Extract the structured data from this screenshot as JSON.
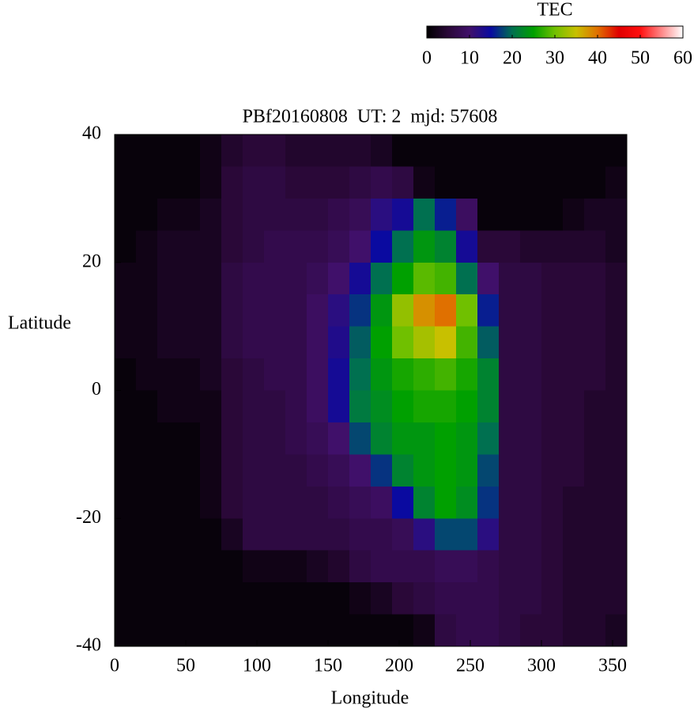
{
  "chart_data": {
    "type": "heatmap",
    "title": "PBf20160808  UT: 2  mjd: 57608",
    "xlabel": "Longitude",
    "ylabel": "Latitude",
    "colorbar_label": "TEC",
    "x": [
      7.5,
      22.5,
      37.5,
      52.5,
      67.5,
      82.5,
      97.5,
      112.5,
      127.5,
      142.5,
      157.5,
      172.5,
      187.5,
      202.5,
      217.5,
      232.5,
      247.5,
      262.5,
      277.5,
      292.5,
      307.5,
      322.5,
      337.5,
      352.5
    ],
    "y": [
      37.5,
      32.5,
      27.5,
      22.5,
      17.5,
      12.5,
      7.5,
      2.5,
      -2.5,
      -7.5,
      -12.5,
      -17.5,
      -22.5,
      -27.5,
      -32.5,
      -37.5
    ],
    "z": [
      [
        1,
        1,
        1,
        1,
        2,
        4,
        5,
        5,
        4,
        4,
        4,
        4,
        3,
        1,
        1,
        1,
        1,
        1,
        1,
        1,
        1,
        1,
        1,
        1
      ],
      [
        1,
        1,
        1,
        1,
        2,
        5,
        6,
        6,
        5,
        5,
        5,
        6,
        7,
        6,
        2,
        1,
        1,
        1,
        1,
        1,
        1,
        1,
        1,
        2
      ],
      [
        1,
        1,
        2,
        2,
        3,
        5,
        6,
        6,
        6,
        6,
        7,
        8,
        12,
        14,
        20,
        16,
        9,
        1,
        1,
        1,
        1,
        2,
        3,
        3
      ],
      [
        1,
        2,
        3,
        3,
        3,
        5,
        6,
        7,
        7,
        7,
        8,
        10,
        15,
        20,
        24,
        22,
        14,
        5,
        5,
        4,
        4,
        4,
        4,
        3
      ],
      [
        2,
        2,
        3,
        3,
        3,
        6,
        7,
        7,
        7,
        8,
        10,
        14,
        20,
        25,
        29,
        28,
        20,
        10,
        6,
        6,
        5,
        5,
        5,
        4
      ],
      [
        2,
        2,
        3,
        3,
        3,
        6,
        7,
        7,
        7,
        9,
        12,
        17,
        24,
        32,
        38,
        40,
        30,
        16,
        6,
        6,
        5,
        5,
        5,
        4
      ],
      [
        2,
        2,
        3,
        3,
        3,
        6,
        7,
        7,
        7,
        9,
        13,
        19,
        25,
        30,
        33,
        35,
        28,
        19,
        6,
        6,
        5,
        5,
        5,
        4
      ],
      [
        1,
        2,
        2,
        2,
        3,
        5,
        6,
        7,
        7,
        9,
        14,
        20,
        24,
        26,
        27,
        28,
        26,
        22,
        6,
        6,
        5,
        5,
        5,
        4
      ],
      [
        1,
        1,
        2,
        2,
        2,
        5,
        6,
        6,
        7,
        9,
        14,
        21,
        23,
        25,
        26,
        26,
        25,
        22,
        6,
        6,
        5,
        5,
        4,
        4
      ],
      [
        1,
        1,
        1,
        1,
        2,
        5,
        6,
        6,
        7,
        8,
        10,
        18,
        22,
        24,
        24,
        25,
        24,
        20,
        6,
        6,
        5,
        5,
        4,
        4
      ],
      [
        1,
        1,
        1,
        1,
        2,
        5,
        6,
        6,
        6,
        7,
        8,
        10,
        17,
        22,
        24,
        25,
        24,
        18,
        6,
        6,
        5,
        5,
        4,
        4
      ],
      [
        1,
        1,
        1,
        1,
        2,
        5,
        6,
        6,
        6,
        6,
        7,
        8,
        9,
        15,
        22,
        25,
        23,
        17,
        6,
        6,
        5,
        4,
        4,
        4
      ],
      [
        1,
        1,
        1,
        1,
        1,
        3,
        6,
        6,
        6,
        6,
        6,
        7,
        7,
        8,
        12,
        18,
        18,
        12,
        6,
        6,
        5,
        4,
        4,
        4
      ],
      [
        1,
        1,
        1,
        1,
        1,
        1,
        2,
        2,
        2,
        3,
        4,
        6,
        7,
        7,
        7,
        8,
        8,
        7,
        6,
        6,
        5,
        4,
        4,
        4
      ],
      [
        1,
        1,
        1,
        1,
        1,
        1,
        1,
        1,
        1,
        1,
        1,
        2,
        3,
        5,
        6,
        7,
        7,
        7,
        6,
        6,
        5,
        4,
        4,
        4
      ],
      [
        1,
        1,
        1,
        1,
        1,
        1,
        1,
        1,
        1,
        1,
        1,
        1,
        1,
        1,
        2,
        6,
        7,
        7,
        6,
        5,
        5,
        4,
        4,
        3
      ]
    ],
    "xlim": [
      0,
      360
    ],
    "xticks": [
      0,
      50,
      100,
      150,
      200,
      250,
      300,
      350
    ],
    "ylim": [
      -40,
      40
    ],
    "yticks": [
      -40,
      -20,
      0,
      20,
      40
    ],
    "zlim": [
      0,
      60
    ],
    "zticks": [
      0,
      10,
      20,
      30,
      40,
      50,
      60
    ],
    "colorscale": [
      [
        0,
        "#000000"
      ],
      [
        5,
        "#2a0838"
      ],
      [
        10,
        "#40106a"
      ],
      [
        15,
        "#0a0aa0"
      ],
      [
        20,
        "#007050"
      ],
      [
        25,
        "#00a000"
      ],
      [
        30,
        "#70c000"
      ],
      [
        35,
        "#c8c000"
      ],
      [
        40,
        "#e07000"
      ],
      [
        45,
        "#e00000"
      ],
      [
        50,
        "#ff1010"
      ],
      [
        55,
        "#ff8888"
      ],
      [
        60,
        "#ffffff"
      ]
    ]
  }
}
